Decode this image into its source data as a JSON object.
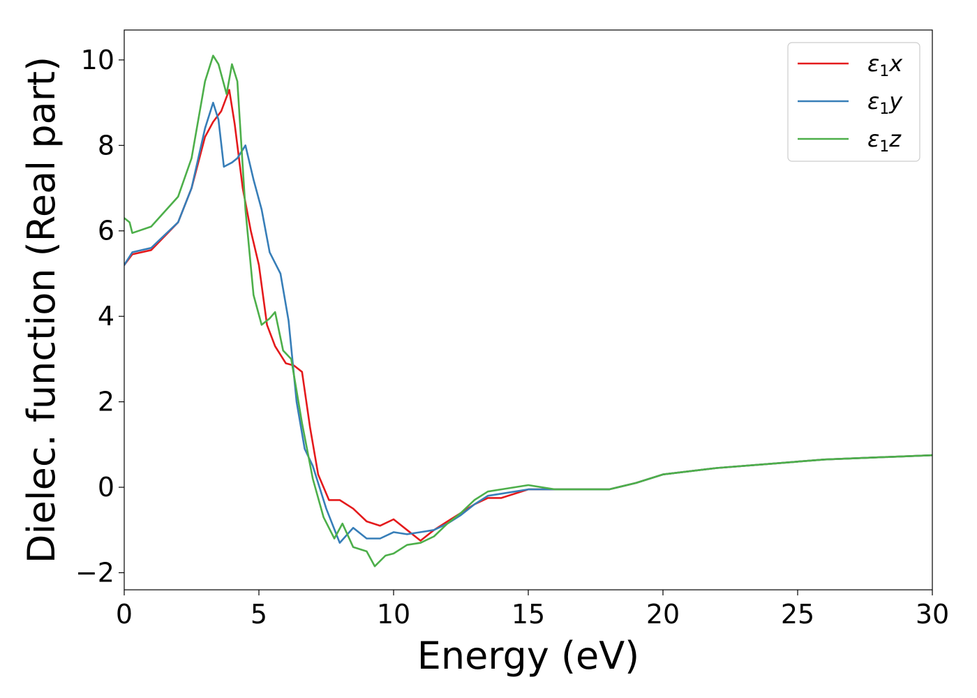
{
  "chart_data": {
    "type": "line",
    "xlabel": "Energy (eV)",
    "ylabel": "Dielec. function (Real part)",
    "xlim": [
      0,
      30
    ],
    "ylim": [
      -2.4,
      10.7
    ],
    "xticks": [
      0,
      5,
      10,
      15,
      20,
      25,
      30
    ],
    "yticks": [
      -2,
      0,
      2,
      4,
      6,
      8,
      10
    ],
    "grid": false,
    "legend_position": "top-right",
    "series": [
      {
        "name": "ε1x",
        "symbol": "ε",
        "subscript": "1",
        "suffix": "x",
        "color": "#e41a1c",
        "x": [
          0,
          0.3,
          1.0,
          2.0,
          2.5,
          3.0,
          3.3,
          3.6,
          3.9,
          4.1,
          4.4,
          4.7,
          5.0,
          5.3,
          5.6,
          6.0,
          6.3,
          6.6,
          6.9,
          7.2,
          7.6,
          8.0,
          8.5,
          9.0,
          9.5,
          10.0,
          10.5,
          11.0,
          11.5,
          12.0,
          12.5,
          13.0,
          13.5,
          14.0,
          15.0,
          16.0,
          17.0,
          18.0,
          19.0,
          20.0,
          22.0,
          24.0,
          26.0,
          28.0,
          30.0
        ],
        "y": [
          5.2,
          5.45,
          5.55,
          6.2,
          7.0,
          8.2,
          8.55,
          8.8,
          9.3,
          8.5,
          7.0,
          6.0,
          5.2,
          3.8,
          3.3,
          2.9,
          2.85,
          2.7,
          1.4,
          0.3,
          -0.3,
          -0.3,
          -0.5,
          -0.8,
          -0.9,
          -0.75,
          -1.0,
          -1.25,
          -1.0,
          -0.8,
          -0.6,
          -0.4,
          -0.25,
          -0.25,
          -0.05,
          -0.05,
          -0.05,
          -0.05,
          0.1,
          0.3,
          0.45,
          0.55,
          0.65,
          0.7,
          0.75
        ]
      },
      {
        "name": "ε1y",
        "symbol": "ε",
        "subscript": "1",
        "suffix": "y",
        "color": "#377eb8",
        "x": [
          0,
          0.3,
          1.0,
          2.0,
          2.5,
          3.0,
          3.3,
          3.5,
          3.7,
          4.0,
          4.2,
          4.5,
          4.8,
          5.1,
          5.4,
          5.8,
          6.1,
          6.4,
          6.7,
          7.0,
          7.5,
          8.0,
          8.5,
          9.0,
          9.5,
          10.0,
          10.5,
          11.0,
          11.5,
          12.0,
          12.5,
          13.0,
          13.5,
          14.0,
          15.0,
          16.0,
          17.0,
          18.0,
          19.0,
          20.0,
          22.0,
          24.0,
          26.0,
          28.0,
          30.0
        ],
        "y": [
          5.2,
          5.5,
          5.6,
          6.2,
          7.0,
          8.4,
          9.0,
          8.6,
          7.5,
          7.6,
          7.7,
          8.0,
          7.2,
          6.5,
          5.5,
          5.0,
          3.9,
          2.0,
          0.9,
          0.5,
          -0.5,
          -1.3,
          -0.95,
          -1.2,
          -1.2,
          -1.05,
          -1.1,
          -1.05,
          -1.0,
          -0.85,
          -0.65,
          -0.4,
          -0.2,
          -0.15,
          -0.05,
          -0.05,
          -0.05,
          -0.05,
          0.1,
          0.3,
          0.45,
          0.55,
          0.65,
          0.7,
          0.75
        ]
      },
      {
        "name": "ε1z",
        "symbol": "ε",
        "subscript": "1",
        "suffix": "z",
        "color": "#4daf4a",
        "x": [
          0,
          0.2,
          0.3,
          1.0,
          2.0,
          2.5,
          3.0,
          3.3,
          3.5,
          3.8,
          4.0,
          4.2,
          4.5,
          4.8,
          5.1,
          5.4,
          5.6,
          5.9,
          6.2,
          6.6,
          7.0,
          7.4,
          7.8,
          8.1,
          8.5,
          9.0,
          9.3,
          9.7,
          10.0,
          10.5,
          11.0,
          11.5,
          12.0,
          12.5,
          13.0,
          13.5,
          14.0,
          15.0,
          16.0,
          17.0,
          18.0,
          19.0,
          20.0,
          22.0,
          24.0,
          26.0,
          28.0,
          30.0
        ],
        "y": [
          6.3,
          6.2,
          5.95,
          6.1,
          6.8,
          7.7,
          9.5,
          10.1,
          9.9,
          9.2,
          9.9,
          9.5,
          6.5,
          4.5,
          3.8,
          3.95,
          4.1,
          3.2,
          3.0,
          1.5,
          0.2,
          -0.7,
          -1.2,
          -0.85,
          -1.4,
          -1.5,
          -1.85,
          -1.6,
          -1.55,
          -1.35,
          -1.3,
          -1.15,
          -0.85,
          -0.6,
          -0.3,
          -0.1,
          -0.05,
          0.05,
          -0.05,
          -0.05,
          -0.05,
          0.1,
          0.3,
          0.45,
          0.55,
          0.65,
          0.7,
          0.75
        ]
      }
    ]
  }
}
